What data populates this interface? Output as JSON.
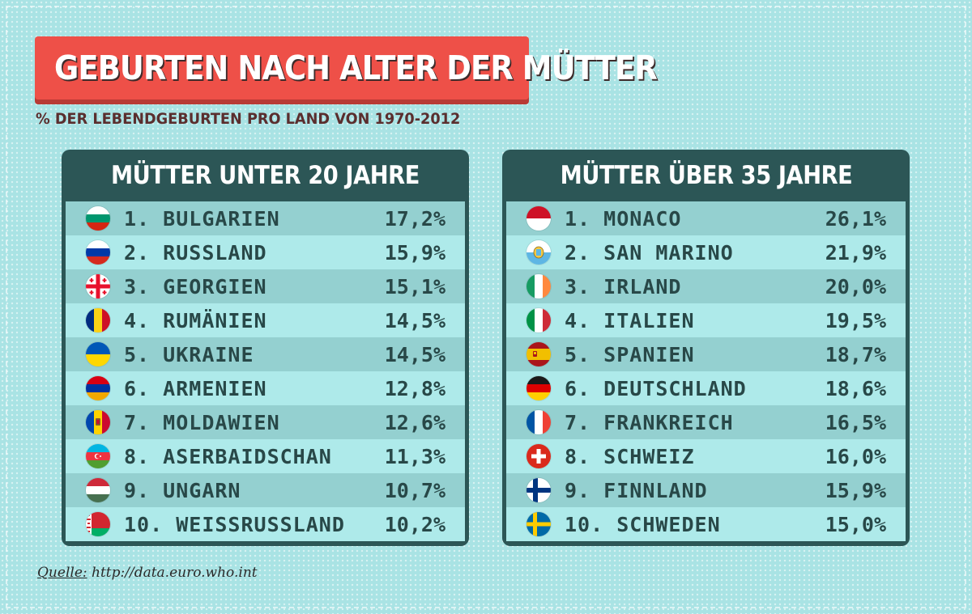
{
  "title": "GEBURTEN NACH ALTER DER MÜTTER",
  "subtitle": "% DER LEBENDGEBURTEN PRO LAND VON 1970-2012",
  "source": {
    "label": "Quelle:",
    "url": "http://data.euro.who.int"
  },
  "chart_data": [
    {
      "type": "table",
      "title": "MÜTTER UNTER 20 JAHRE",
      "rows": [
        {
          "rank": "1.",
          "country": "BULGARIEN",
          "value": "17,2%",
          "flag": "bulgaria-flag-icon"
        },
        {
          "rank": "2.",
          "country": "RUSSLAND",
          "value": "15,9%",
          "flag": "russia-flag-icon"
        },
        {
          "rank": "3.",
          "country": "GEORGIEN",
          "value": "15,1%",
          "flag": "georgia-flag-icon"
        },
        {
          "rank": "4.",
          "country": "RUMÄNIEN",
          "value": "14,5%",
          "flag": "romania-flag-icon"
        },
        {
          "rank": "5.",
          "country": "UKRAINE",
          "value": "14,5%",
          "flag": "ukraine-flag-icon"
        },
        {
          "rank": "6.",
          "country": "ARMENIEN",
          "value": "12,8%",
          "flag": "armenia-flag-icon"
        },
        {
          "rank": "7.",
          "country": "MOLDAWIEN",
          "value": "12,6%",
          "flag": "moldova-flag-icon"
        },
        {
          "rank": "8.",
          "country": "ASERBAIDSCHAN",
          "value": "11,3%",
          "flag": "azerbaijan-flag-icon"
        },
        {
          "rank": "9.",
          "country": "UNGARN",
          "value": "10,7%",
          "flag": "hungary-flag-icon"
        },
        {
          "rank": "10.",
          "country": "WEISSRUSSLAND",
          "value": "10,2%",
          "flag": "belarus-flag-icon"
        }
      ]
    },
    {
      "type": "table",
      "title": "MÜTTER ÜBER 35 JAHRE",
      "rows": [
        {
          "rank": "1.",
          "country": "MONACO",
          "value": "26,1%",
          "flag": "monaco-flag-icon"
        },
        {
          "rank": "2.",
          "country": "SAN MARINO",
          "value": "21,9%",
          "flag": "san-marino-flag-icon"
        },
        {
          "rank": "3.",
          "country": "IRLAND",
          "value": "20,0%",
          "flag": "ireland-flag-icon"
        },
        {
          "rank": "4.",
          "country": "ITALIEN",
          "value": "19,5%",
          "flag": "italy-flag-icon"
        },
        {
          "rank": "5.",
          "country": "SPANIEN",
          "value": "18,7%",
          "flag": "spain-flag-icon"
        },
        {
          "rank": "6.",
          "country": "DEUTSCHLAND",
          "value": "18,6%",
          "flag": "germany-flag-icon"
        },
        {
          "rank": "7.",
          "country": "FRANKREICH",
          "value": "16,5%",
          "flag": "france-flag-icon"
        },
        {
          "rank": "8.",
          "country": "SCHWEIZ",
          "value": "16,0%",
          "flag": "switzerland-flag-icon"
        },
        {
          "rank": "9.",
          "country": "FINNLAND",
          "value": "15,9%",
          "flag": "finland-flag-icon"
        },
        {
          "rank": "10.",
          "country": "SCHWEDEN",
          "value": "15,0%",
          "flag": "sweden-flag-icon"
        }
      ]
    }
  ]
}
